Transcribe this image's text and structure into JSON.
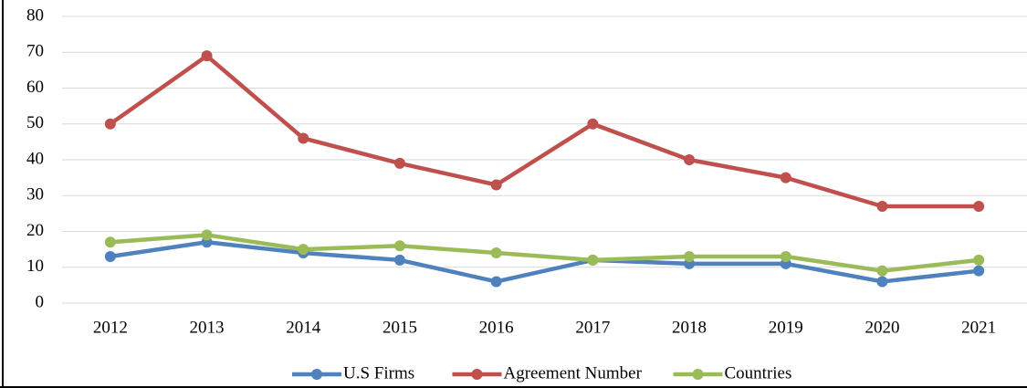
{
  "chart_data": {
    "type": "line",
    "categories": [
      "2012",
      "2013",
      "2014",
      "2015",
      "2016",
      "2017",
      "2018",
      "2019",
      "2020",
      "2021"
    ],
    "series": [
      {
        "name": "U.S Firms",
        "color": "#4f81bd",
        "values": [
          13,
          17,
          14,
          12,
          6,
          12,
          11,
          11,
          6,
          9
        ]
      },
      {
        "name": "Agreement Number",
        "color": "#c0504d",
        "values": [
          50,
          69,
          46,
          39,
          33,
          50,
          40,
          35,
          27,
          27
        ]
      },
      {
        "name": "Countries",
        "color": "#9bbb59",
        "values": [
          17,
          19,
          15,
          16,
          14,
          12,
          13,
          13,
          9,
          12
        ]
      }
    ],
    "ylim": [
      0,
      80
    ],
    "yticks": [
      0,
      10,
      20,
      30,
      40,
      50,
      60,
      70,
      80
    ],
    "grid": true,
    "legend": "bottom"
  }
}
